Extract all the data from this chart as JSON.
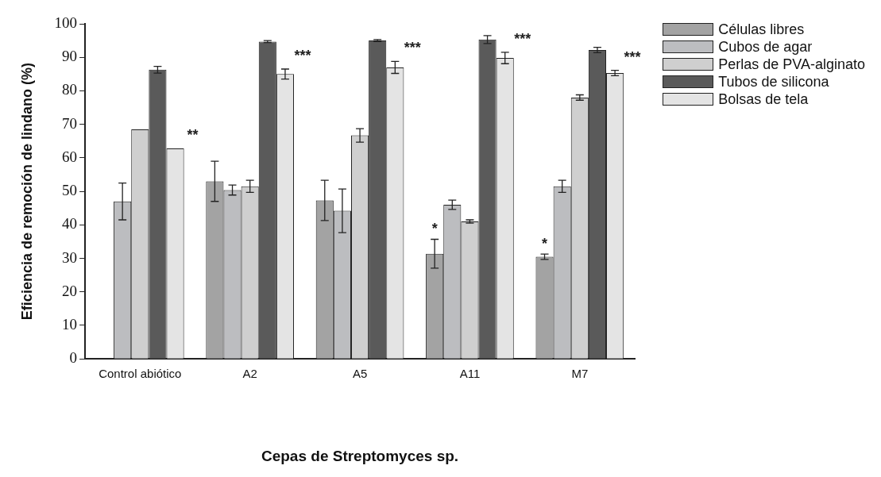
{
  "chart_data": {
    "type": "bar",
    "xlabel": "Cepas de Streptomyces sp.",
    "ylabel": "Eficiencia de remoción de lindano (%)",
    "categories": [
      "Control abiótico",
      "A2",
      "A5",
      "A11",
      "M7"
    ],
    "series": [
      {
        "name": "Células libres",
        "color": "#a3a3a3",
        "values": [
          null,
          53,
          47.3,
          31.4,
          30.5
        ],
        "errors": [
          null,
          6,
          6,
          4.3,
          0.8
        ]
      },
      {
        "name": "Cubos de agar",
        "color": "#bcbdc0",
        "values": [
          47,
          50.4,
          44.2,
          46,
          51.5
        ],
        "errors": [
          5.5,
          1.5,
          6.5,
          1.4,
          1.8
        ]
      },
      {
        "name": "Perlas de PVA-alginato",
        "color": "#cfcfcf",
        "values": [
          68.5,
          51.5,
          66.7,
          41,
          78
        ],
        "errors": [
          null,
          1.8,
          2,
          0.5,
          0.8
        ]
      },
      {
        "name": "Tubos de silicona",
        "color": "#5a5a5a",
        "values": [
          86.3,
          94.7,
          95,
          95.3,
          92.2
        ],
        "errors": [
          1,
          0.3,
          0.3,
          1.2,
          0.8
        ]
      },
      {
        "name": "Bolsas de tela",
        "color": "#e4e4e4",
        "values": [
          62.8,
          85,
          87,
          89.8,
          85.3
        ],
        "errors": [
          null,
          1.5,
          1.8,
          1.7,
          0.8
        ]
      }
    ],
    "ylim": [
      0,
      100
    ],
    "yticks": [
      0,
      10,
      20,
      30,
      40,
      50,
      60,
      70,
      80,
      90,
      100
    ],
    "grid": false,
    "legend": "top right",
    "annotations": [
      "**",
      "***",
      "***",
      "***",
      "***",
      "*",
      "*"
    ]
  }
}
